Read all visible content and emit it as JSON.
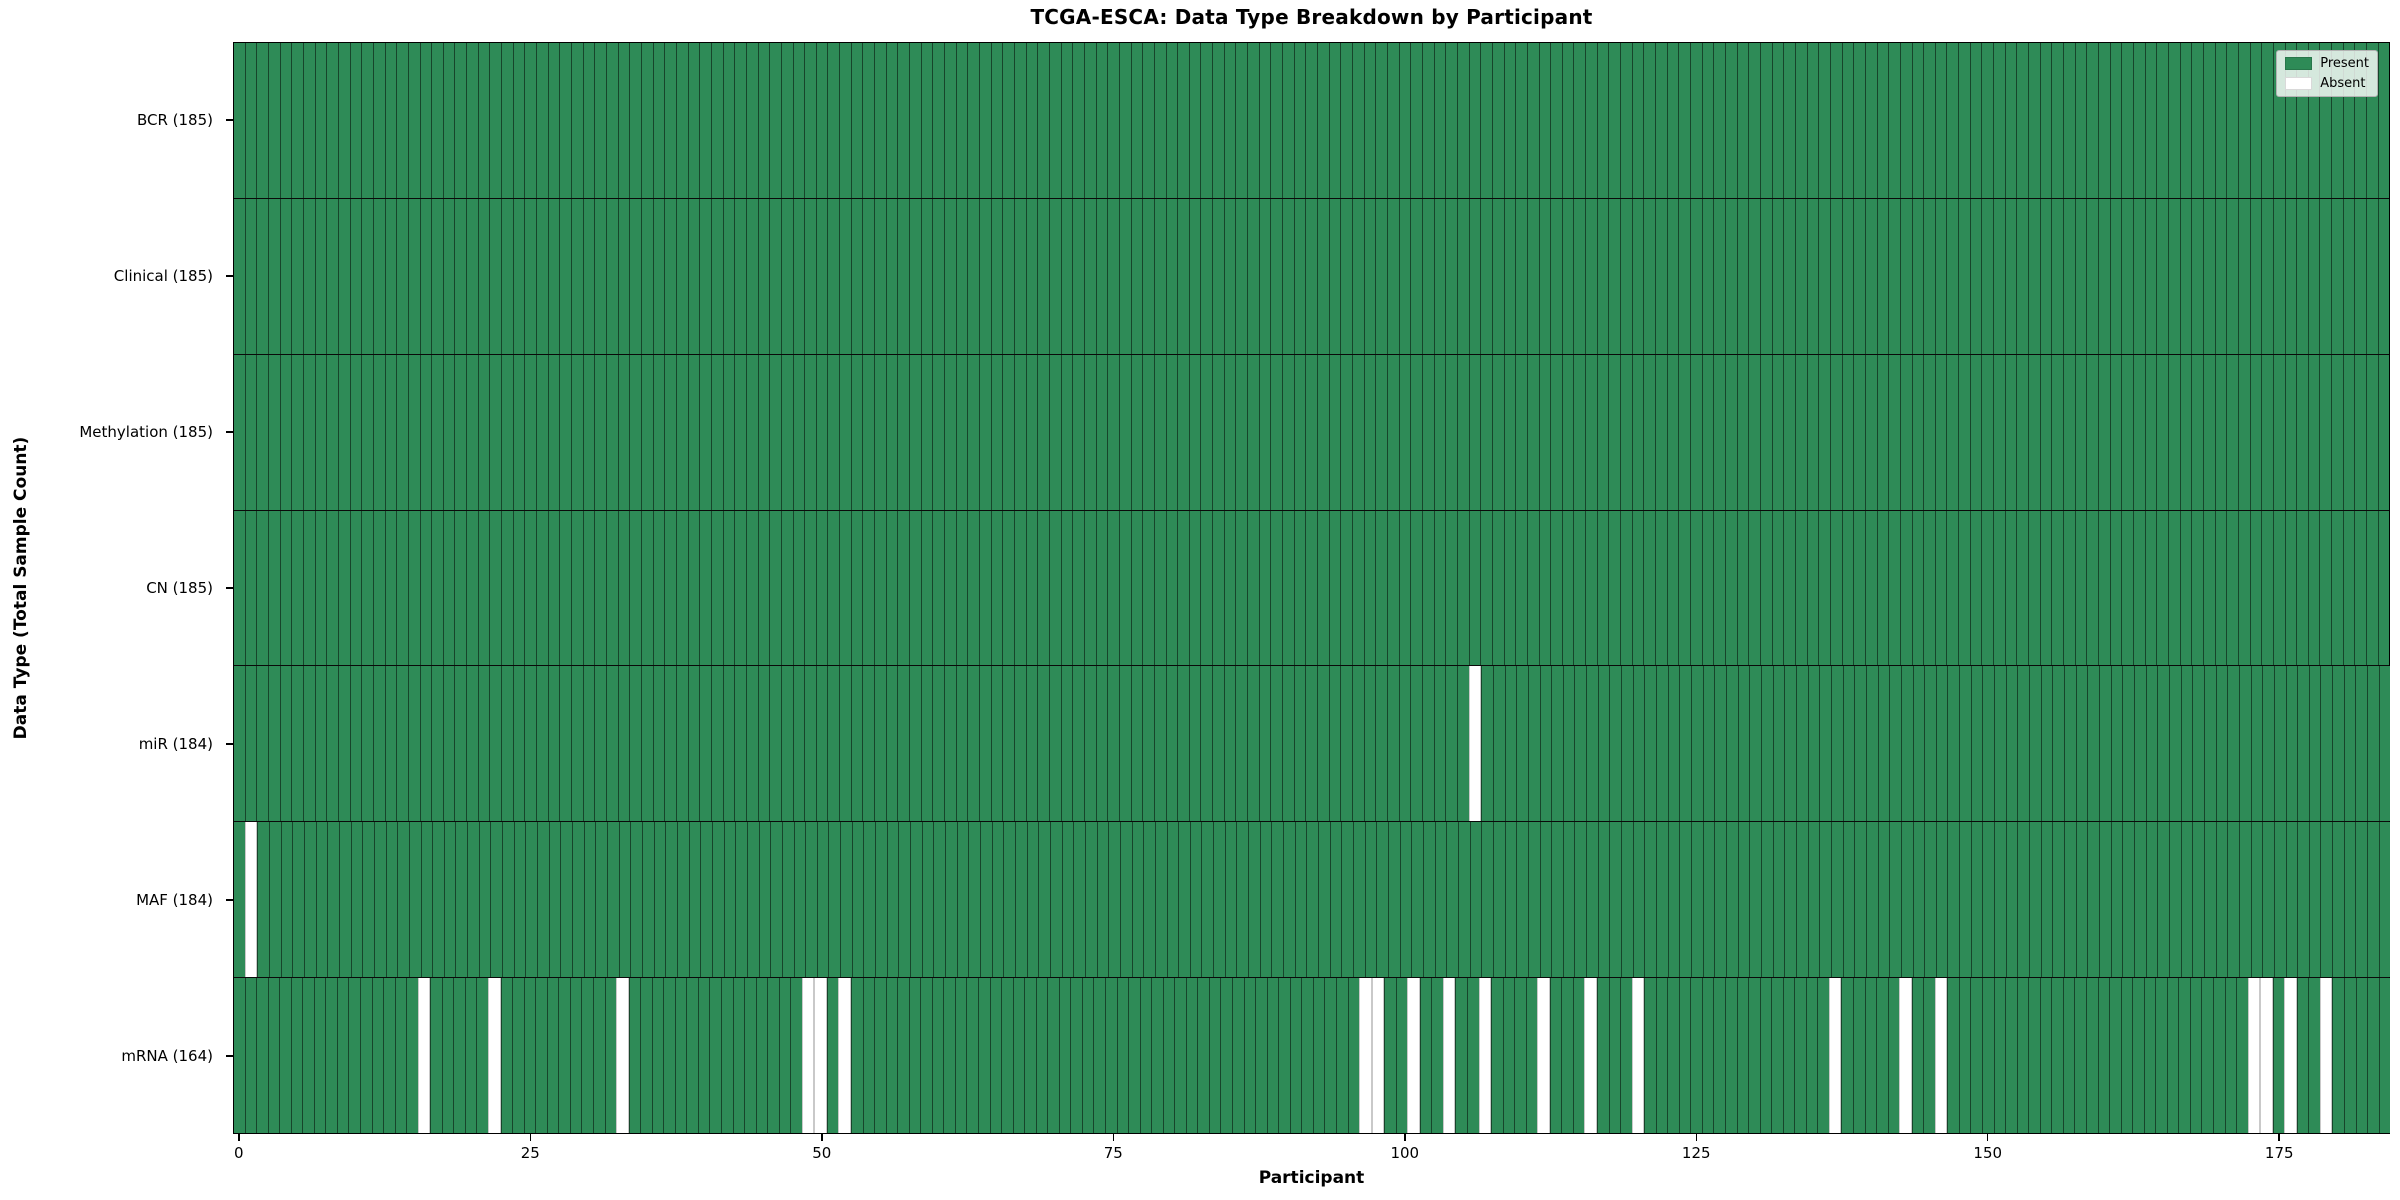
{
  "chart_data": {
    "type": "heatmap",
    "title": "TCGA-ESCA: Data Type Breakdown by Participant",
    "xlabel": "Participant",
    "ylabel": "Data Type (Total Sample Count)",
    "n_participants": 185,
    "xlim": [
      -0.5,
      184.5
    ],
    "x_ticks": [
      0,
      25,
      50,
      75,
      100,
      125,
      150,
      175
    ],
    "grid": false,
    "legend_position": "upper right",
    "legend_items": [
      {
        "label": "Present",
        "color": "#2e8b57"
      },
      {
        "label": "Absent",
        "color": "#ffffff"
      }
    ],
    "colors": {
      "present": "#2e8b57",
      "absent": "#ffffff",
      "bar_edge": "rgba(0,0,0,0.5)"
    },
    "rows": [
      {
        "label": "BCR (185)",
        "data_type": "BCR",
        "total_sample_count": 185,
        "absent_participants": []
      },
      {
        "label": "Clinical (185)",
        "data_type": "Clinical",
        "total_sample_count": 185,
        "absent_participants": []
      },
      {
        "label": "Methylation (185)",
        "data_type": "Methylation",
        "total_sample_count": 185,
        "absent_participants": []
      },
      {
        "label": "CN (185)",
        "data_type": "CN",
        "total_sample_count": 185,
        "absent_participants": []
      },
      {
        "label": "miR (184)",
        "data_type": "miR",
        "total_sample_count": 184,
        "absent_participants": [
          106
        ]
      },
      {
        "label": "MAF (184)",
        "data_type": "MAF",
        "total_sample_count": 184,
        "absent_participants": [
          1
        ]
      },
      {
        "label": "mRNA (164)",
        "data_type": "mRNA",
        "total_sample_count": 164,
        "absent_participants": [
          16,
          22,
          33,
          49,
          50,
          52,
          97,
          98,
          101,
          104,
          107,
          112,
          116,
          120,
          137,
          143,
          146,
          173,
          174,
          176,
          179
        ]
      }
    ]
  }
}
